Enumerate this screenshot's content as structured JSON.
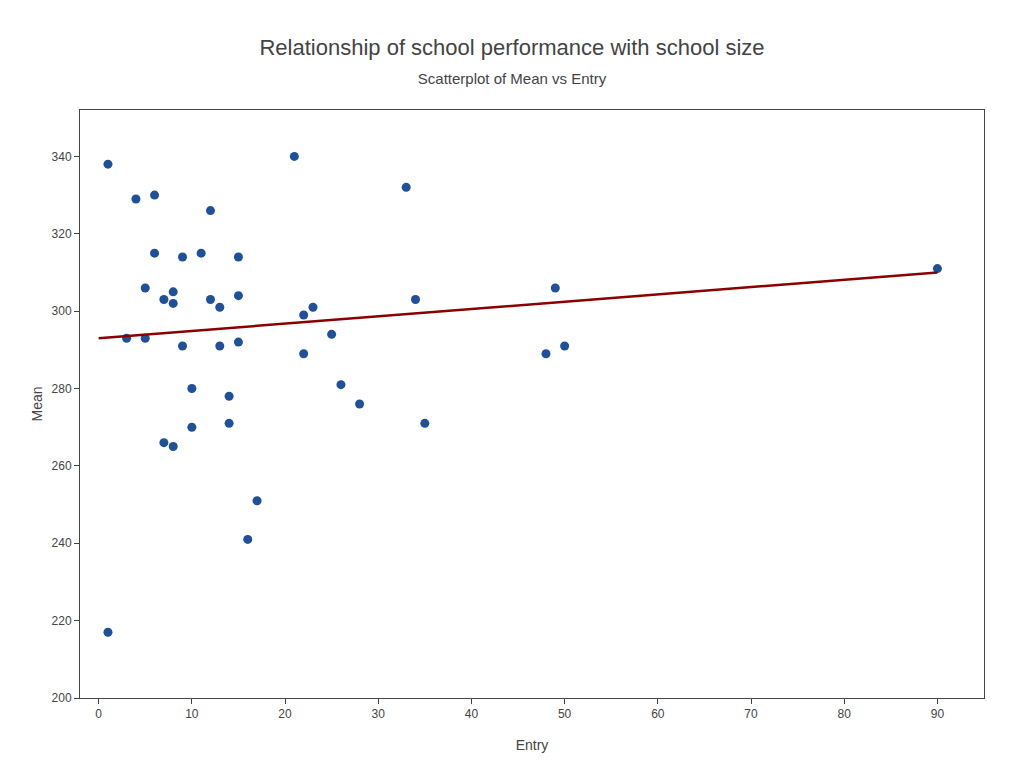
{
  "chart_data": {
    "type": "scatter",
    "title": "Relationship of school performance with school size",
    "subtitle": "Scatterplot of Mean vs Entry",
    "xlabel": "Entry",
    "ylabel": "Mean",
    "series": [
      {
        "type": "scatter",
        "marker": "circle",
        "color": "#1F5099",
        "x": [
          1,
          1,
          3,
          4,
          5,
          5,
          6,
          6,
          7,
          7,
          8,
          8,
          8,
          9,
          9,
          10,
          10,
          11,
          12,
          12,
          13,
          13,
          14,
          14,
          15,
          15,
          15,
          16,
          17,
          21,
          22,
          22,
          23,
          25,
          26,
          28,
          33,
          34,
          35,
          48,
          49,
          50,
          90
        ],
        "values": [
          338,
          217,
          293,
          329,
          306,
          293,
          330,
          315,
          303,
          266,
          302,
          305,
          265,
          314,
          291,
          280,
          270,
          315,
          326,
          303,
          301,
          291,
          278,
          271,
          314,
          304,
          292,
          241,
          251,
          340,
          299,
          289,
          301,
          294,
          281,
          276,
          332,
          303,
          271,
          289,
          306,
          291,
          311
        ]
      },
      {
        "type": "line",
        "line_style": "solid",
        "color": "#8B0000",
        "x": [
          0,
          90
        ],
        "values": [
          293,
          310
        ]
      }
    ],
    "xlim": [
      -2,
      95
    ],
    "ylim": [
      200,
      352
    ],
    "xticks": [
      0,
      10,
      20,
      30,
      40,
      50,
      60,
      70,
      80,
      90
    ],
    "yticks": [
      200,
      220,
      240,
      260,
      280,
      300,
      320,
      340
    ],
    "grid": false
  }
}
